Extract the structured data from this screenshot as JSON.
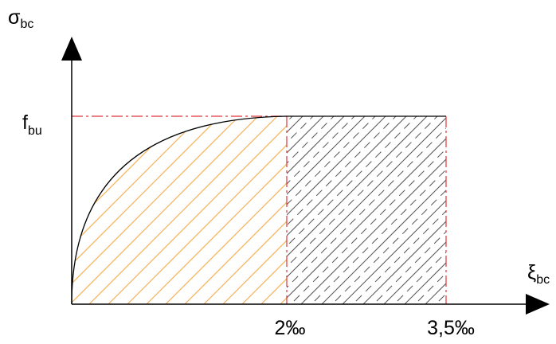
{
  "diagram": {
    "y_axis_label": {
      "main": "σ",
      "sub": "bc"
    },
    "x_axis_label": {
      "main": "ξ",
      "sub": "bc"
    },
    "level_label": {
      "main": "f",
      "sub": "bu"
    },
    "tick_2": "2‰",
    "tick_35": "3,5‰"
  },
  "colors": {
    "axis": "#000000",
    "curve": "#000000",
    "dashed_guides": "#e0353a",
    "parabolic_hatch": "#f5b35a",
    "rect_hatch": "#555555"
  }
}
